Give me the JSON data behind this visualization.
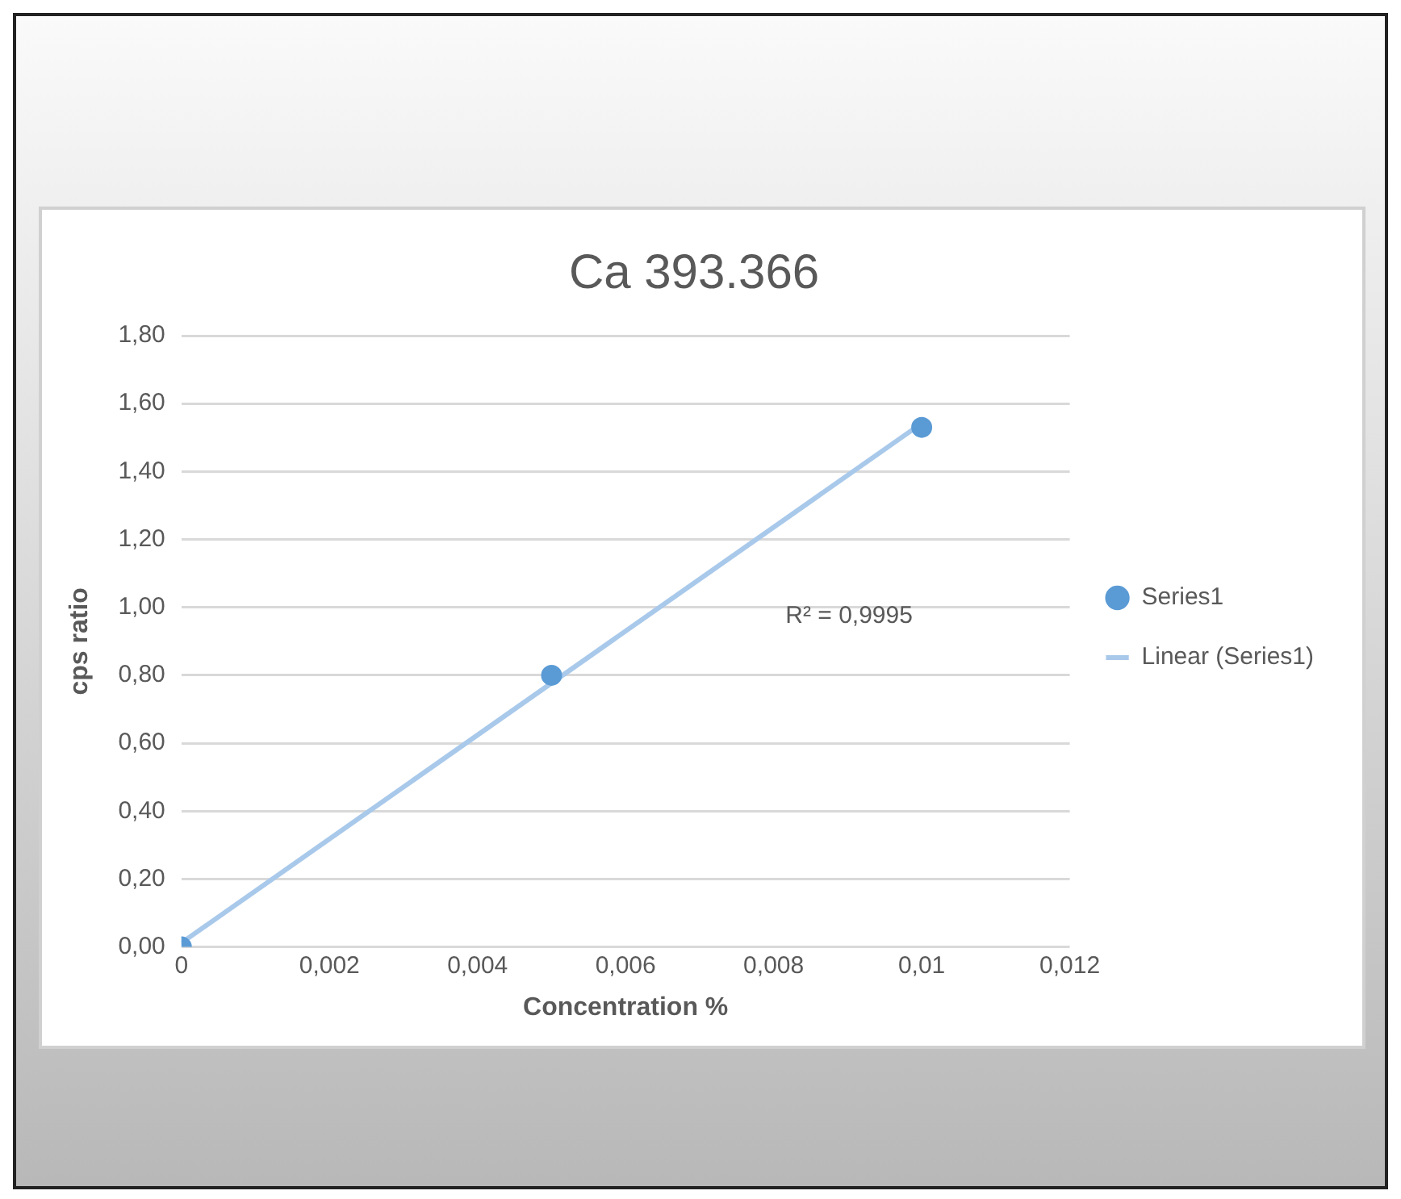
{
  "chart_data": {
    "type": "scatter",
    "title": "Ca 393.366",
    "xlabel": "Concentration %",
    "ylabel": "cps ratio",
    "series": [
      {
        "name": "Series1",
        "marker": "circle",
        "color": "#5b9bd5",
        "x": [
          0,
          0.005,
          0.01
        ],
        "values": [
          0.0,
          0.8,
          1.53
        ]
      },
      {
        "name": "Linear (Series1)",
        "type": "line",
        "color": "#a9c9eb",
        "x": [
          0,
          0.01
        ],
        "values": [
          0.012,
          1.542
        ]
      }
    ],
    "xlim": [
      0,
      0.012
    ],
    "xticks": [
      0,
      {
        "value": 0.002,
        "label": "0,002"
      },
      {
        "value": 0.004,
        "label": "0,004"
      },
      {
        "value": 0.006,
        "label": "0,006"
      },
      {
        "value": 0.008,
        "label": "0,008"
      },
      {
        "value": 0.01,
        "label": "0,01"
      },
      {
        "value": 0.012,
        "label": "0,012"
      }
    ],
    "ylim": [
      0,
      1.8
    ],
    "yticks": [
      {
        "value": 0,
        "label": "0,00"
      },
      {
        "value": 0.2,
        "label": "0,20"
      },
      {
        "value": 0.4,
        "label": "0,40"
      },
      {
        "value": 0.6,
        "label": "0,60"
      },
      {
        "value": 0.8,
        "label": "0,80"
      },
      {
        "value": 1,
        "label": "1,00"
      },
      {
        "value": 1.2,
        "label": "1,20"
      },
      {
        "value": 1.4,
        "label": "1,40"
      },
      {
        "value": 1.6,
        "label": "1,60"
      },
      {
        "value": 1.8,
        "label": "1,80"
      }
    ],
    "annotations": [
      "R² = 0,9995"
    ],
    "grid": "y",
    "legend": "right"
  }
}
